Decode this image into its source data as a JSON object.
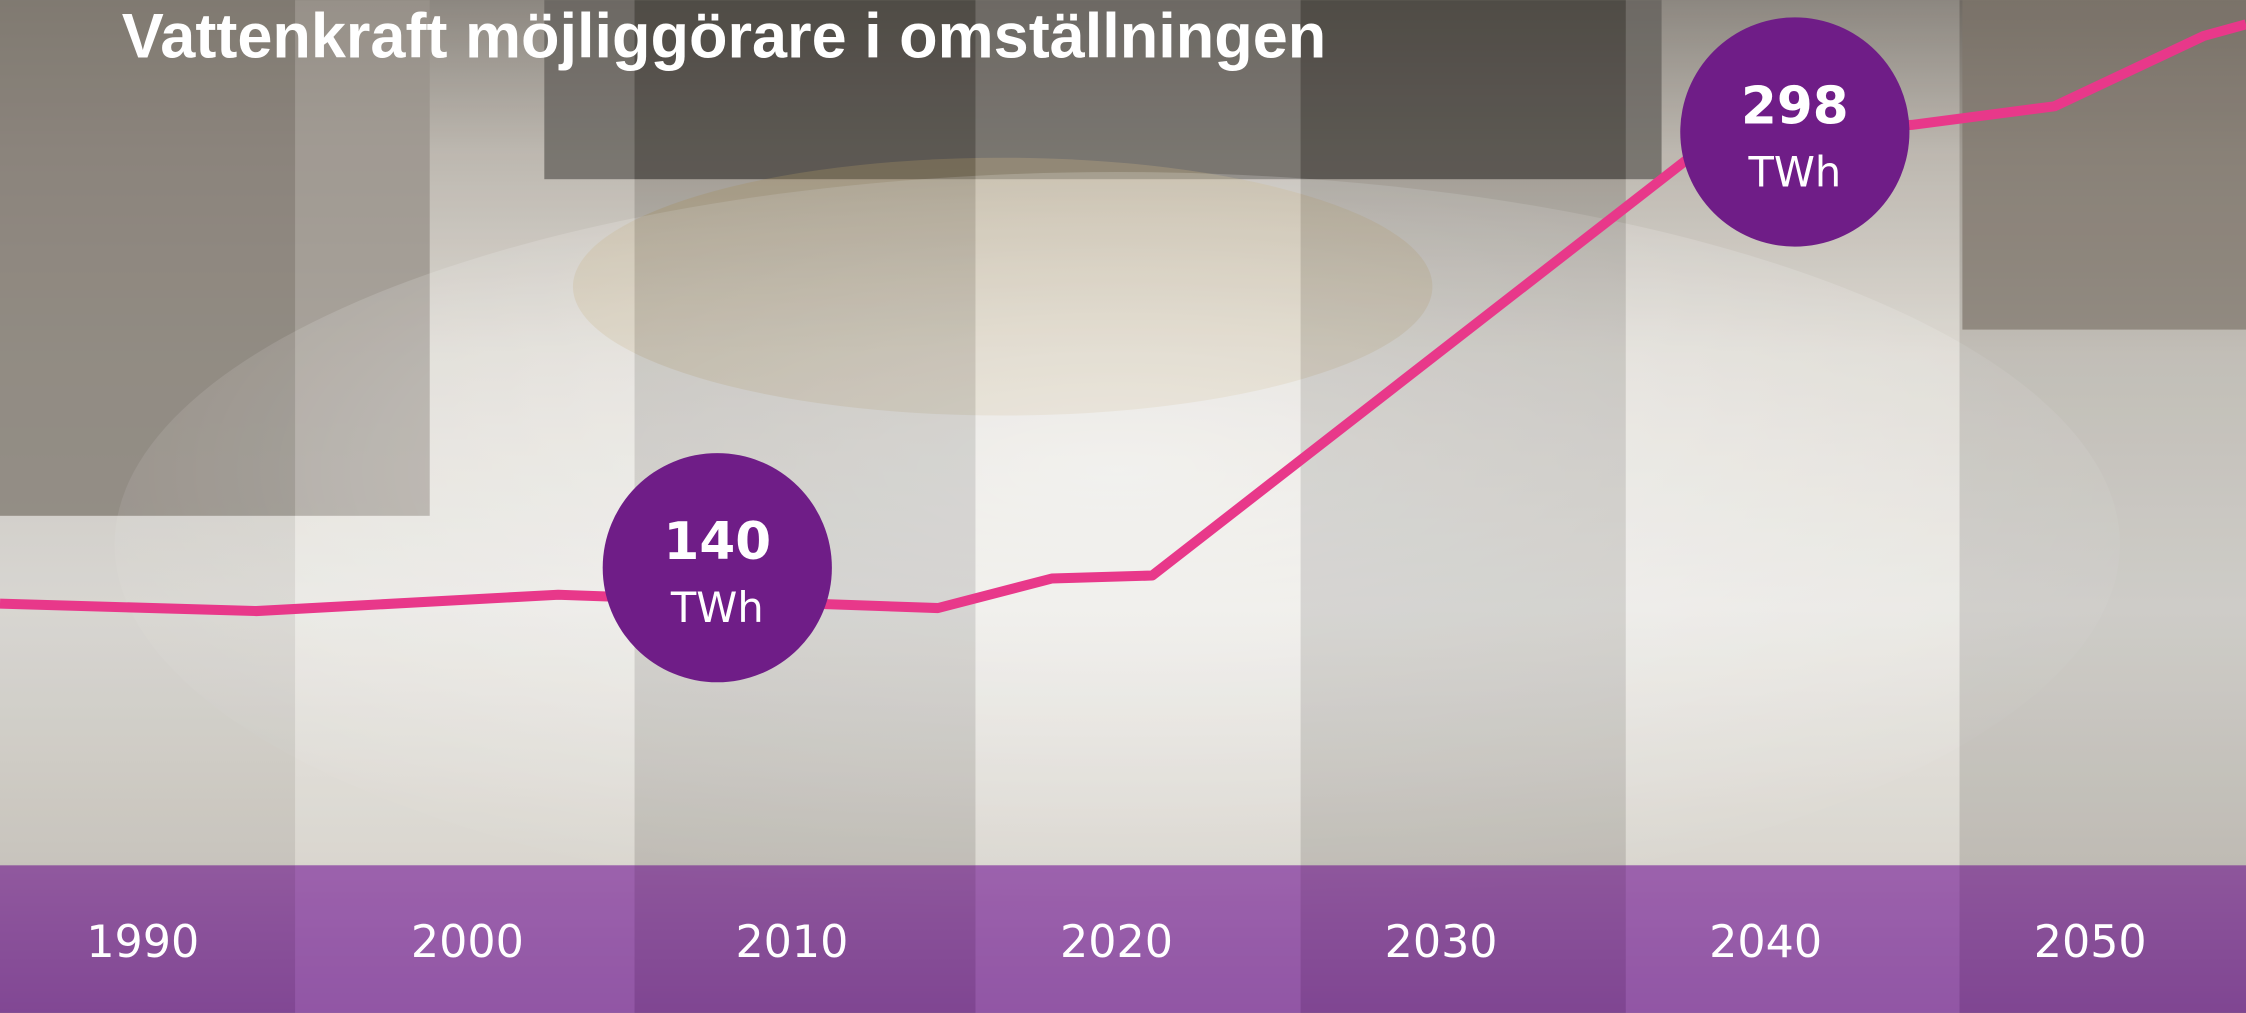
{
  "chart_data": {
    "type": "line",
    "title": "Vattenkraft möjliggörare i omställningen",
    "x": [
      1985.6,
      1993.5,
      2002.8,
      2014.5,
      2018,
      2021.1,
      2038.5,
      2044.5,
      2048.9,
      2053.5,
      2054.8
    ],
    "series": [
      {
        "color": "#e8388a",
        "values": [
          138.5,
          136,
          141.5,
          137,
          147,
          148,
          296.6,
          300.4,
          306.7,
          330.5,
          334.4
        ]
      }
    ],
    "xlim": [
      1985.6,
      2054.8
    ],
    "xticks": [
      1990,
      2000,
      2010,
      2020,
      2030,
      2040,
      2050
    ],
    "ylim": [
      50,
      342.6
    ],
    "annotations": [
      {
        "x": 2007.7,
        "value": 140,
        "unit": "TWh",
        "color": "#6f1d87"
      },
      {
        "x": 2040.9,
        "value": 298,
        "unit": "TWh",
        "color": "#6f1d87"
      }
    ]
  }
}
